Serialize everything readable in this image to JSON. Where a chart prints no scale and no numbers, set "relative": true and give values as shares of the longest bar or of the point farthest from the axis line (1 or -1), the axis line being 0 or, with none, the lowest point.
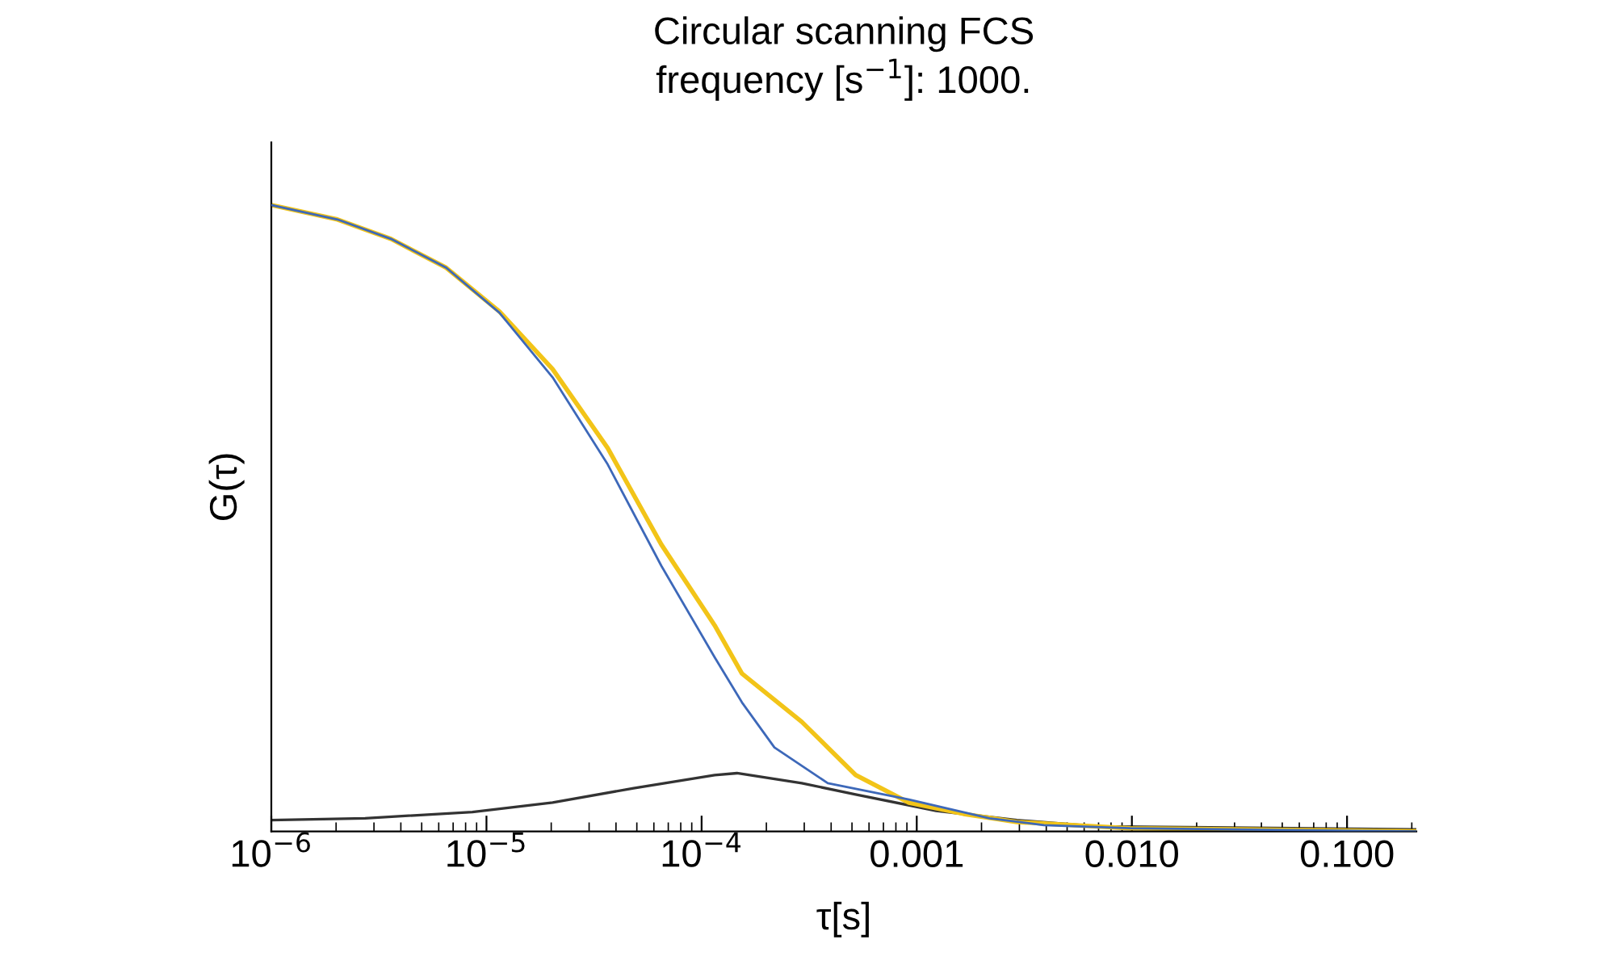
{
  "chart_data": {
    "type": "line",
    "title": "Circular scanning FCS\nfrequency [s$^{−1}$]: 1000.",
    "xlabel": "τ[s]",
    "ylabel": "G(τ)",
    "log": "x",
    "relative": true,
    "tick_labels": "x",
    "grid": false,
    "legend": false,
    "xlim": [
      1e-06,
      0.21
    ],
    "xticks": [
      {
        "value": 1e-06,
        "label": "10$^{−6}$"
      },
      {
        "value": 1e-05,
        "label": "10$^{−5}$"
      },
      {
        "value": 0.0001,
        "label": "10$^{−4}$"
      },
      {
        "value": 0.001,
        "label": "0.001"
      },
      {
        "value": 0.01,
        "label": "0.010"
      },
      {
        "value": 0.1,
        "label": "0.100"
      }
    ],
    "series": [
      {
        "color": "#3d68b9",
        "x": [
          1e-06,
          2.03e-06,
          3.6e-06,
          6.5e-06,
          1.15e-05,
          2.03e-05,
          3.66e-05,
          6.5e-05,
          0.000115,
          0.000154,
          0.000218,
          0.000386,
          0.00092,
          0.00218,
          0.0039,
          0.0098,
          0.21
        ],
        "values": [
          1.0,
          0.977,
          0.946,
          0.9,
          0.828,
          0.725,
          0.586,
          0.424,
          0.278,
          0.206,
          0.134,
          0.077,
          0.051,
          0.021,
          0.01,
          0.005,
          0.0
        ]
      },
      {
        "color": "#f2c418",
        "x": [
          1e-06,
          2.03e-06,
          3.6e-06,
          6.5e-06,
          1.15e-05,
          2.03e-05,
          3.66e-05,
          6.5e-05,
          0.000115,
          0.000154,
          0.000292,
          0.000386,
          0.00052,
          0.00092,
          0.00165,
          0.00292,
          0.0098,
          0.21
        ],
        "values": [
          1.0,
          0.977,
          0.946,
          0.9,
          0.83,
          0.738,
          0.612,
          0.458,
          0.329,
          0.252,
          0.175,
          0.134,
          0.09,
          0.046,
          0.028,
          0.015,
          0.005,
          0.0
        ]
      },
      {
        "color": "#333333",
        "x": [
          1e-06,
          2.73e-06,
          8.6e-06,
          2.03e-05,
          4.83e-05,
          0.000115,
          0.000146,
          0.000292,
          0.00052,
          0.00123,
          0.00292,
          0.0069,
          0.21
        ],
        "values": [
          0.018,
          0.021,
          0.031,
          0.046,
          0.069,
          0.09,
          0.093,
          0.077,
          0.059,
          0.033,
          0.018,
          0.008,
          0.003
        ]
      }
    ]
  }
}
